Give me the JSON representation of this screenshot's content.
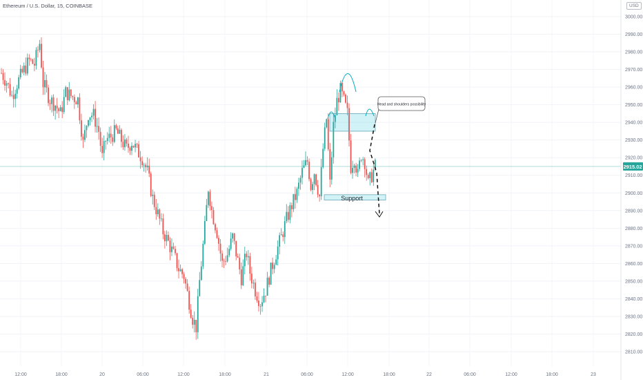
{
  "chart_data": {
    "type": "candlestick",
    "title": "Ethereum / U.S. Dollar, 15, COINBASE",
    "currency_label": "USD",
    "y_axis": {
      "ylim": [
        2806,
        3005
      ],
      "ticks": [
        3000.0,
        2990.0,
        2980.0,
        2970.0,
        2960.0,
        2950.0,
        2940.0,
        2930.0,
        2920.0,
        2910.0,
        2900.0,
        2890.0,
        2880.0,
        2870.0,
        2860.0,
        2850.0,
        2840.0,
        2830.0,
        2820.0,
        2810.0
      ],
      "tick_labels": [
        "3000.00",
        "2990.00",
        "2980.00",
        "2970.00",
        "2960.00",
        "2950.00",
        "2940.00",
        "2930.00",
        "2920.00",
        "2910.00",
        "2900.00",
        "2890.00",
        "2880.00",
        "2870.00",
        "2860.00",
        "2850.00",
        "2840.00",
        "2830.00",
        "2820.00",
        "2810.00"
      ]
    },
    "x_axis": {
      "tick_labels": [
        "12:00",
        "18:00",
        "20",
        "06:00",
        "12:00",
        "18:00",
        "21",
        "06:00",
        "12:00",
        "18:00",
        "22",
        "06:00",
        "12:00",
        "18:00",
        "23"
      ]
    },
    "last_price": 2915.02,
    "last_price_label": "2915.02",
    "up_color": "#26a69a",
    "down_color": "#ef5350",
    "price_path": [
      [
        0,
        2968
      ],
      [
        3,
        2963
      ],
      [
        6,
        2955
      ],
      [
        9,
        2962
      ],
      [
        12,
        2968
      ],
      [
        16,
        2975
      ],
      [
        19,
        2973
      ],
      [
        22,
        2985
      ],
      [
        24,
        2962
      ],
      [
        28,
        2953
      ],
      [
        31,
        2950
      ],
      [
        34,
        2945
      ],
      [
        37,
        2957
      ],
      [
        40,
        2955
      ],
      [
        44,
        2953
      ],
      [
        47,
        2928
      ],
      [
        50,
        2945
      ],
      [
        53,
        2944
      ],
      [
        56,
        2935
      ],
      [
        58,
        2920
      ],
      [
        60,
        2930
      ],
      [
        63,
        2932
      ],
      [
        66,
        2935
      ],
      [
        69,
        2930
      ],
      [
        72,
        2925
      ],
      [
        75,
        2929
      ],
      [
        78,
        2924
      ],
      [
        81,
        2920
      ],
      [
        84,
        2912
      ],
      [
        87,
        2897
      ],
      [
        90,
        2888
      ],
      [
        93,
        2878
      ],
      [
        96,
        2872
      ],
      [
        99,
        2865
      ],
      [
        102,
        2857
      ],
      [
        105,
        2853
      ],
      [
        107,
        2843
      ],
      [
        110,
        2829
      ],
      [
        112,
        2824
      ],
      [
        114,
        2850
      ],
      [
        117,
        2880
      ],
      [
        119,
        2903
      ],
      [
        121,
        2890
      ],
      [
        124,
        2878
      ],
      [
        127,
        2860
      ],
      [
        130,
        2865
      ],
      [
        133,
        2875
      ],
      [
        135,
        2866
      ],
      [
        138,
        2852
      ],
      [
        141,
        2866
      ],
      [
        143,
        2855
      ],
      [
        146,
        2845
      ],
      [
        149,
        2838
      ],
      [
        152,
        2845
      ],
      [
        155,
        2856
      ],
      [
        158,
        2866
      ],
      [
        161,
        2875
      ],
      [
        164,
        2885
      ],
      [
        167,
        2893
      ],
      [
        170,
        2900
      ],
      [
        173,
        2912
      ],
      [
        176,
        2918
      ],
      [
        178,
        2904
      ],
      [
        180,
        2912
      ],
      [
        183,
        2898
      ],
      [
        185,
        2925
      ],
      [
        187,
        2942
      ],
      [
        189,
        2905
      ],
      [
        191,
        2938
      ],
      [
        193,
        2952
      ],
      [
        195,
        2958
      ],
      [
        197,
        2952
      ],
      [
        199,
        2945
      ],
      [
        201,
        2915
      ],
      [
        203,
        2920
      ],
      [
        205,
        2910
      ],
      [
        207,
        2922
      ],
      [
        209,
        2918
      ],
      [
        211,
        2905
      ],
      [
        213,
        2910
      ],
      [
        215,
        2915
      ]
    ],
    "annotations": {
      "label": "Head and shoulders possibility",
      "zone_label": "Support",
      "resistance_zone": [
        2935,
        2945
      ],
      "support_zone": [
        2896,
        2899
      ]
    }
  }
}
